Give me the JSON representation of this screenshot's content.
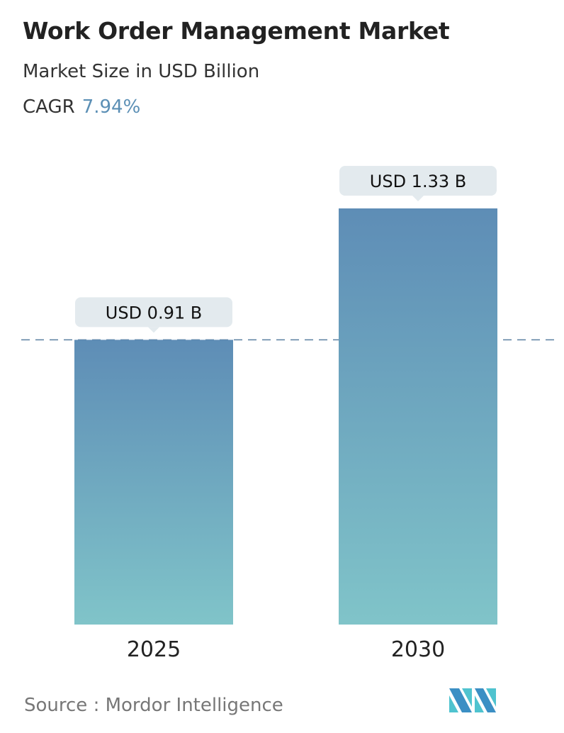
{
  "header": {
    "title": "Work Order Management Market",
    "subtitle": "Market Size in USD Billion",
    "cagr_label": "CAGR",
    "cagr_value": "7.94%"
  },
  "chart_data": {
    "type": "bar",
    "categories": [
      "2025",
      "2030"
    ],
    "values": [
      0.91,
      1.33
    ],
    "data_labels": [
      "USD 0.91 B",
      "USD 1.33 B"
    ],
    "title": "Work Order Management Market",
    "ylabel": "Market Size in USD Billion",
    "grid": false,
    "reference_line": 0.91,
    "colors": {
      "bar_top": "#5e8db6",
      "bar_bottom": "#80c4c9",
      "label_bg": "#e3eaee",
      "dash": "#5a7fa0"
    }
  },
  "footer": {
    "source": "Source :  Mordor Intelligence",
    "logo": "Mordor Intelligence"
  }
}
